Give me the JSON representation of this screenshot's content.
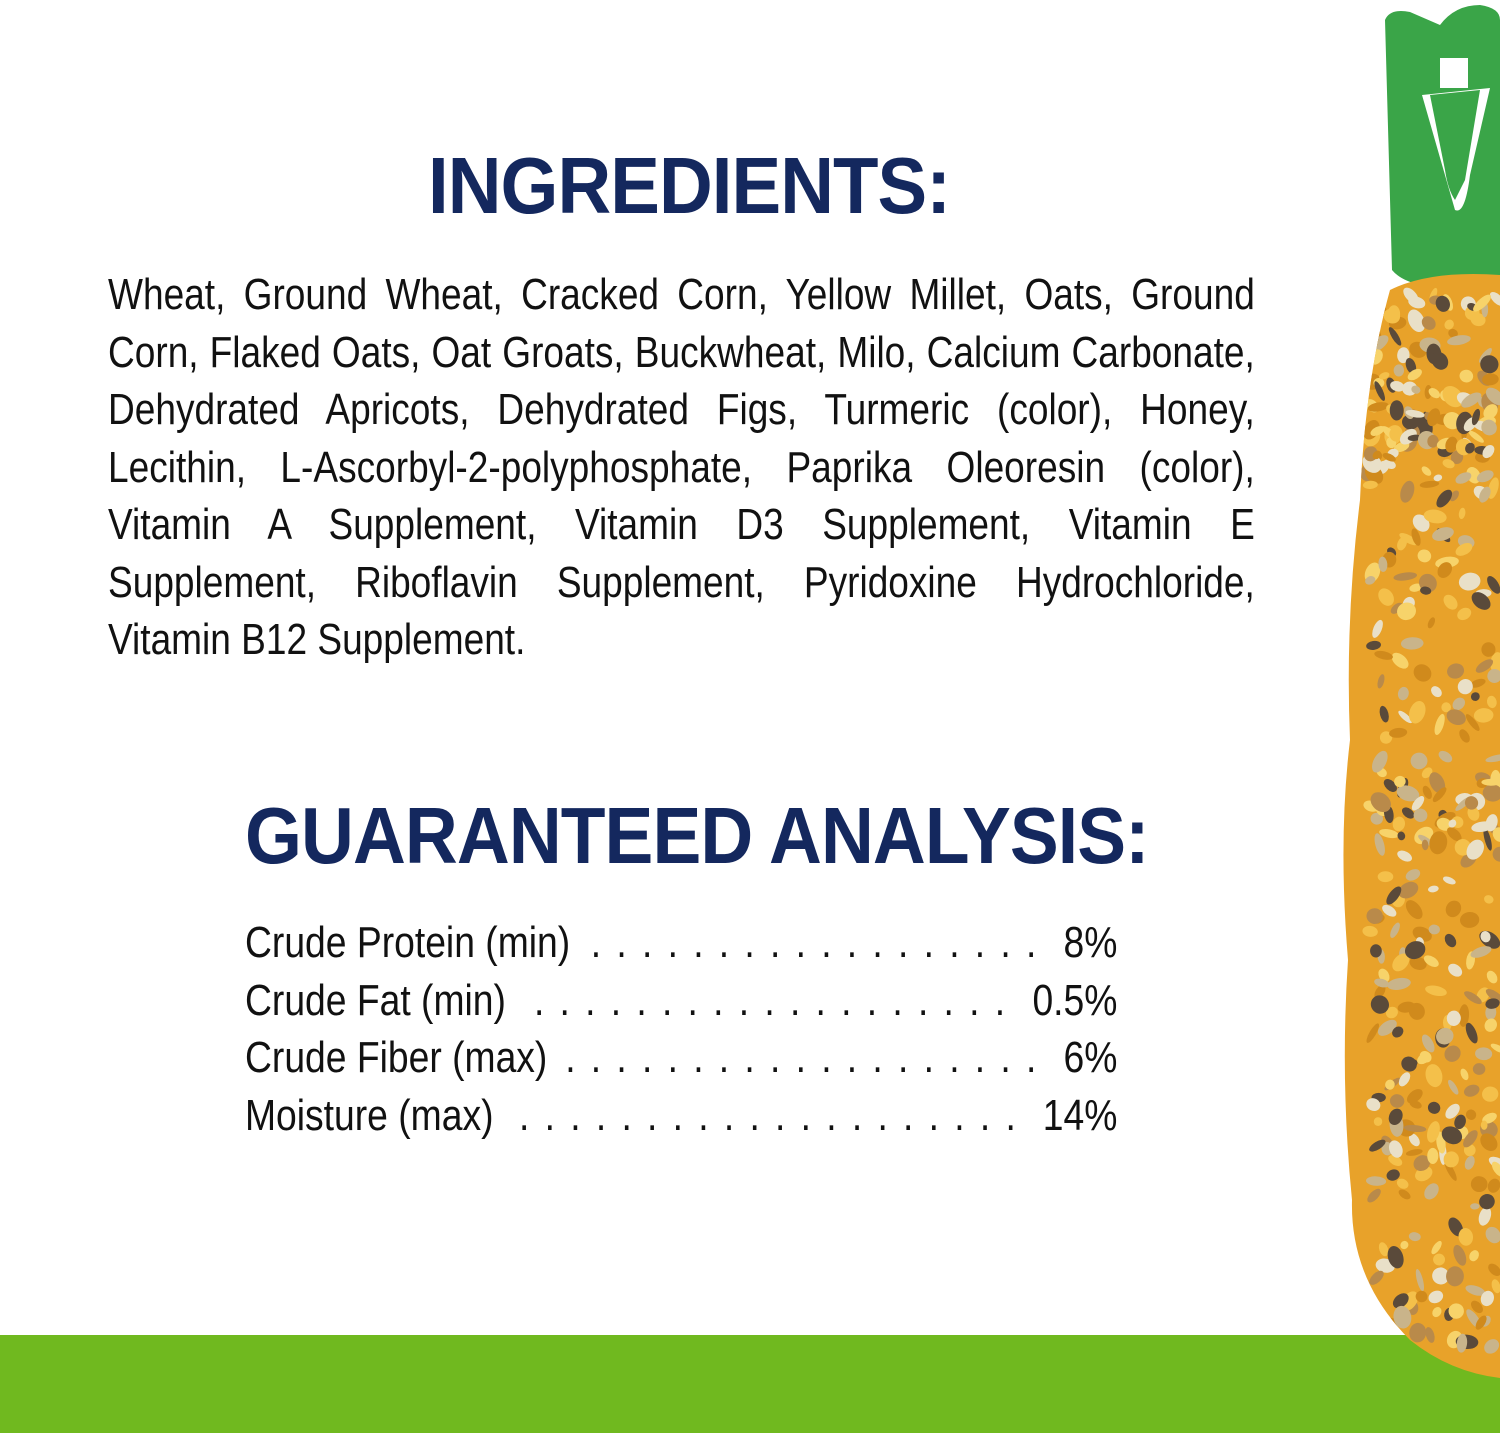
{
  "ingredients": {
    "title": "INGREDIENTS:",
    "text": "Wheat, Ground Wheat, Cracked Corn, Yellow Millet, Oats, Ground Corn, Flaked Oats, Oat Groats, Buckwheat, Milo, Calcium Carbonate, Dehydrated Apricots, Dehydrated Figs, Turmeric (color), Honey, Lecithin, L-Ascorbyl-2-polyphosphate, Paprika Oleoresin (color), Vitamin A Supplement, Vitamin D3 Supplement, Vitamin E Supplement, Riboflavin Supplement, Pyridoxine Hydrochloride, Vitamin B12 Supplement."
  },
  "analysis": {
    "title": "GUARANTEED ANALYSIS:",
    "rows": [
      {
        "label": "Crude Protein (min)",
        "value": "8%"
      },
      {
        "label": "Crude Fat (min)",
        "value": "0.5%"
      },
      {
        "label": "Crude Fiber (max)",
        "value": "6%"
      },
      {
        "label": "Moisture (max)",
        "value": "14%"
      }
    ]
  },
  "colors": {
    "heading": "#14285e",
    "bar": "#70b91f",
    "hook": "#3aa548",
    "stick": "#e8a22a"
  },
  "images": {
    "stick": "seed-stick-treat-with-green-hook"
  }
}
